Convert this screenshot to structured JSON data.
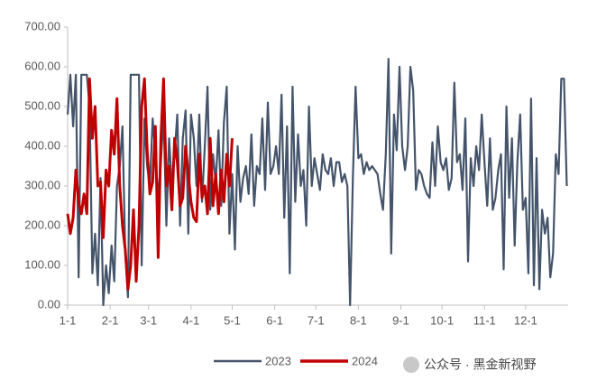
{
  "chart_data": {
    "type": "line",
    "xlim": [
      1,
      366
    ],
    "ylim": [
      0,
      700
    ],
    "xticks": [
      {
        "value": 1,
        "label": "1-1"
      },
      {
        "value": 32,
        "label": "2-1"
      },
      {
        "value": 60,
        "label": "3-1"
      },
      {
        "value": 91,
        "label": "4-1"
      },
      {
        "value": 121,
        "label": "5-1"
      },
      {
        "value": 152,
        "label": "6-1"
      },
      {
        "value": 182,
        "label": "7-1"
      },
      {
        "value": 213,
        "label": "8-1"
      },
      {
        "value": 244,
        "label": "9-1"
      },
      {
        "value": 274,
        "label": "10-1"
      },
      {
        "value": 305,
        "label": "11-1"
      },
      {
        "value": 335,
        "label": "12-1"
      }
    ],
    "yticks": [
      {
        "value": 0,
        "label": "0.00"
      },
      {
        "value": 100,
        "label": "100.00"
      },
      {
        "value": 200,
        "label": "200.00"
      },
      {
        "value": 300,
        "label": "300.00"
      },
      {
        "value": 400,
        "label": "400.00"
      },
      {
        "value": 500,
        "label": "500.00"
      },
      {
        "value": 600,
        "label": "600.00"
      },
      {
        "value": 700,
        "label": "700.00"
      }
    ],
    "watermark": "公众号 · 黑金新视野",
    "series": [
      {
        "name": "2023",
        "color": "#44546a",
        "x": [
          1,
          3,
          5,
          7,
          9,
          11,
          13,
          15,
          17,
          19,
          21,
          23,
          25,
          27,
          29,
          31,
          33,
          35,
          37,
          39,
          41,
          43,
          45,
          47,
          49,
          51,
          53,
          55,
          57,
          59,
          61,
          63,
          65,
          67,
          69,
          71,
          73,
          75,
          77,
          79,
          81,
          83,
          85,
          87,
          89,
          91,
          93,
          95,
          97,
          99,
          101,
          103,
          105,
          107,
          109,
          111,
          113,
          115,
          117,
          119,
          121,
          123,
          125,
          127,
          129,
          131,
          133,
          135,
          137,
          139,
          141,
          143,
          145,
          147,
          149,
          151,
          153,
          155,
          157,
          159,
          161,
          163,
          165,
          167,
          169,
          171,
          173,
          175,
          177,
          179,
          181,
          183,
          185,
          187,
          189,
          191,
          193,
          195,
          197,
          199,
          201,
          203,
          205,
          207,
          209,
          211,
          213,
          215,
          217,
          219,
          221,
          223,
          225,
          227,
          229,
          231,
          233,
          235,
          237,
          239,
          241,
          243,
          245,
          247,
          249,
          251,
          253,
          255,
          257,
          259,
          261,
          263,
          265,
          267,
          269,
          271,
          273,
          275,
          277,
          279,
          281,
          283,
          285,
          287,
          289,
          291,
          293,
          295,
          297,
          299,
          301,
          303,
          305,
          307,
          309,
          311,
          313,
          315,
          317,
          319,
          321,
          323,
          325,
          327,
          329,
          331,
          333,
          335,
          337,
          339,
          341,
          343,
          345,
          347,
          349,
          351,
          353,
          355,
          357,
          359,
          361,
          363,
          365
        ],
        "values": [
          480,
          580,
          450,
          580,
          70,
          580,
          580,
          580,
          500,
          80,
          180,
          50,
          320,
          0,
          100,
          30,
          150,
          60,
          300,
          350,
          450,
          130,
          20,
          580,
          580,
          580,
          580,
          100,
          470,
          350,
          300,
          470,
          380,
          270,
          360,
          480,
          200,
          420,
          300,
          380,
          480,
          200,
          420,
          490,
          180,
          480,
          420,
          300,
          480,
          260,
          400,
          550,
          240,
          380,
          310,
          440,
          250,
          460,
          550,
          180,
          330,
          140,
          400,
          260,
          320,
          350,
          280,
          430,
          250,
          350,
          330,
          470,
          290,
          510,
          330,
          350,
          400,
          330,
          530,
          220,
          450,
          80,
          550,
          260,
          430,
          300,
          340,
          200,
          500,
          300,
          370,
          330,
          290,
          380,
          340,
          330,
          370,
          300,
          360,
          360,
          310,
          330,
          300,
          0,
          320,
          550,
          370,
          380,
          330,
          360,
          340,
          350,
          340,
          330,
          280,
          240,
          380,
          620,
          130,
          480,
          390,
          600,
          400,
          340,
          400,
          600,
          540,
          290,
          340,
          330,
          300,
          280,
          270,
          410,
          300,
          450,
          360,
          340,
          370,
          290,
          320,
          560,
          360,
          380,
          290,
          470,
          110,
          370,
          300,
          400,
          340,
          480,
          360,
          250,
          420,
          240,
          270,
          340,
          380,
          90,
          500,
          270,
          420,
          150,
          360,
          480,
          240,
          270,
          80,
          520,
          50,
          370,
          40,
          240,
          180,
          220,
          70,
          130,
          380,
          330,
          570,
          570,
          300
        ]
      },
      {
        "name": "2024",
        "color": "#c00000",
        "x": [
          1,
          3,
          5,
          7,
          9,
          11,
          13,
          15,
          17,
          19,
          21,
          23,
          25,
          27,
          29,
          31,
          33,
          35,
          37,
          39,
          41,
          43,
          45,
          47,
          49,
          51,
          53,
          55,
          57,
          59,
          61,
          63,
          65,
          67,
          69,
          71,
          73,
          75,
          77,
          79,
          81,
          83,
          85,
          87,
          89,
          91,
          93,
          95,
          97,
          99,
          101,
          103,
          105,
          107,
          109,
          111,
          113,
          115,
          117,
          119,
          121
        ],
        "values": [
          230,
          180,
          220,
          340,
          260,
          230,
          280,
          230,
          570,
          420,
          500,
          300,
          310,
          170,
          340,
          300,
          440,
          380,
          520,
          300,
          200,
          140,
          40,
          100,
          240,
          60,
          200,
          500,
          570,
          390,
          280,
          310,
          450,
          120,
          420,
          570,
          300,
          350,
          240,
          420,
          360,
          250,
          270,
          400,
          330,
          260,
          220,
          210,
          380,
          270,
          300,
          230,
          420,
          250,
          330,
          230,
          340,
          260,
          380,
          300,
          420
        ]
      }
    ]
  }
}
